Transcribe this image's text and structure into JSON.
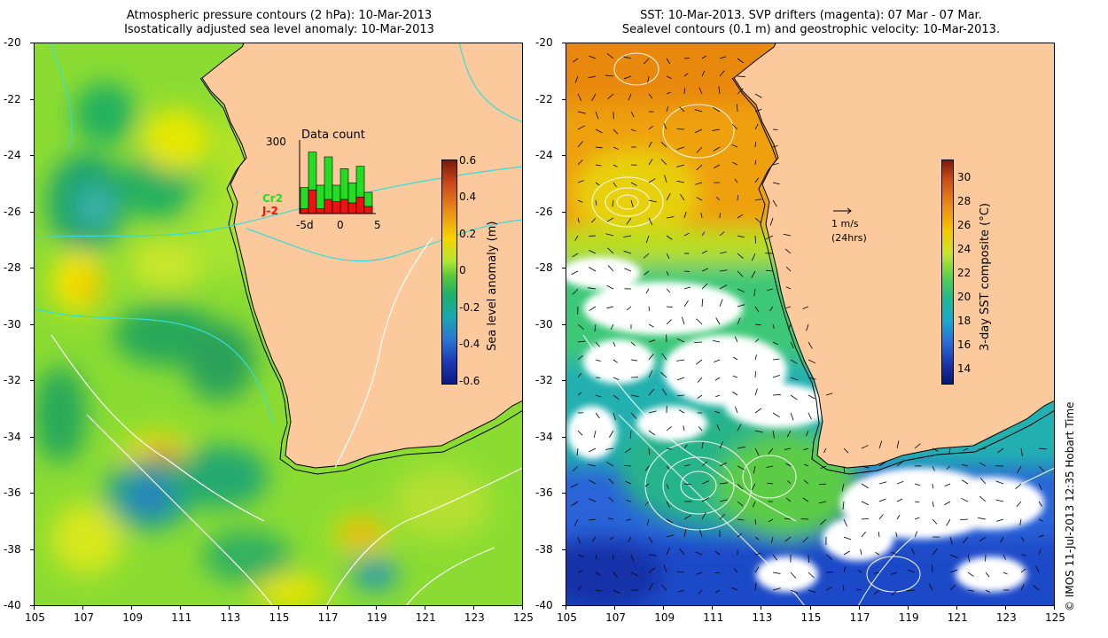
{
  "left_panel": {
    "title_line1": "Atmospheric pressure contours (2 hPa): 10-Mar-2013",
    "title_line2": "Isostatically adjusted sea level anomaly: 10-Mar-2013",
    "lat_ticks": [
      "-20",
      "-22",
      "-24",
      "-26",
      "-28",
      "-30",
      "-32",
      "-34",
      "-36",
      "-38",
      "-40"
    ],
    "lon_ticks": [
      "105",
      "107",
      "109",
      "111",
      "113",
      "115",
      "117",
      "119",
      "121",
      "123",
      "125"
    ],
    "colorbar": {
      "label": "Sea level anomaly (m)",
      "ticks": [
        "0.6",
        "0.4",
        "0.2",
        "0",
        "-0.2",
        "-0.4",
        "-0.6"
      ]
    },
    "inset": {
      "title": "Data count",
      "y_tick": "300",
      "x_ticks": [
        "-5d",
        "0",
        "5"
      ],
      "legend_cr2": "Cr2",
      "legend_j2": "J-2",
      "color_cr2": "#22dd22",
      "color_j2": "#ee1111",
      "bars_cr2": [
        110,
        260,
        120,
        240,
        120,
        190,
        130,
        200,
        90
      ],
      "bars_j2": [
        20,
        100,
        20,
        60,
        50,
        60,
        45,
        70,
        30
      ]
    }
  },
  "right_panel": {
    "title_line1": "SST: 10-Mar-2013. SVP drifters (magenta): 07 Mar - 07 Mar.",
    "title_line2": "Sealevel contours (0.1 m) and geostrophic velocity: 10-Mar-2013.",
    "lat_ticks": [
      "-20",
      "-22",
      "-24",
      "-26",
      "-28",
      "-30",
      "-32",
      "-34",
      "-36",
      "-38",
      "-40"
    ],
    "lon_ticks": [
      "105",
      "107",
      "109",
      "111",
      "113",
      "115",
      "117",
      "119",
      "121",
      "123",
      "125"
    ],
    "colorbar": {
      "label": "3-day SST composite (°C)",
      "ticks": [
        "30",
        "28",
        "26",
        "24",
        "22",
        "20",
        "18",
        "16",
        "14"
      ]
    },
    "scale_arrow_label": "1 m/s",
    "scale_arrow_sub": "(24hrs)"
  },
  "copyright": "© IMOS 11-Jul-2013 12:35 Hobart Time",
  "colors": {
    "land": "#fbc99b",
    "coast": "#000000",
    "cyan_contour": "#33dddd",
    "white_contour": "#ffffff"
  }
}
